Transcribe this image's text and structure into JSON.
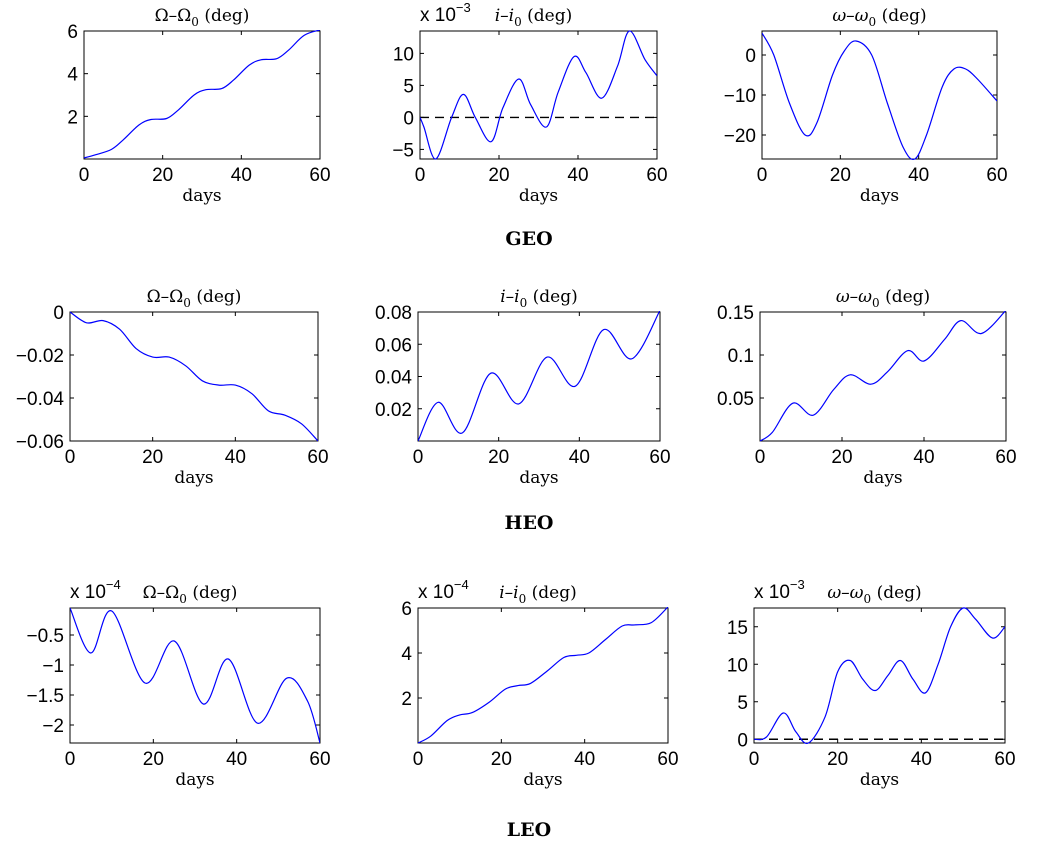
{
  "chart_data": [
    {
      "type": "line",
      "group": "GEO",
      "title": "Ω–Ω0 (deg)",
      "xlabel": "days",
      "ylabel": "",
      "exponent": "",
      "xlim": [
        0,
        60
      ],
      "ylim": [
        0,
        6
      ],
      "xticks": [
        "0",
        "20",
        "40",
        "60"
      ],
      "yticks": [
        2,
        4,
        6
      ],
      "ytick_labels": [
        "2",
        "4",
        "6"
      ],
      "zero_line": false,
      "grid": false,
      "series": [
        {
          "x": [
            0,
            3,
            7,
            10,
            14,
            17,
            21,
            24,
            28,
            31,
            35,
            38,
            42,
            45,
            49,
            52,
            56,
            60
          ],
          "y": [
            0.05,
            0.2,
            0.45,
            0.9,
            1.6,
            1.85,
            1.9,
            2.3,
            3.0,
            3.25,
            3.3,
            3.7,
            4.4,
            4.65,
            4.7,
            5.1,
            5.8,
            6.05
          ]
        }
      ]
    },
    {
      "type": "line",
      "group": "GEO",
      "title": "i–i0 (deg)",
      "xlabel": "days",
      "ylabel": "",
      "exponent": "x 10^-3",
      "xlim": [
        0,
        60
      ],
      "ylim": [
        -6.5,
        13.5
      ],
      "xticks": [
        "0",
        "20",
        "40",
        "60"
      ],
      "yticks": [
        -5,
        0,
        5,
        10
      ],
      "ytick_labels": [
        "-5",
        "0",
        "5",
        "10"
      ],
      "zero_line": true,
      "grid": false,
      "series": [
        {
          "x": [
            0,
            1,
            4,
            8,
            11,
            14,
            18,
            21,
            25,
            28,
            32,
            35,
            39,
            42,
            46,
            50,
            53,
            57,
            60
          ],
          "y": [
            0,
            -1.5,
            -6.5,
            0,
            3.6,
            0,
            -3.8,
            1.5,
            6.0,
            2.0,
            -1.5,
            4.0,
            9.5,
            7.0,
            3.0,
            8.0,
            13.5,
            9.0,
            6.5
          ]
        }
      ]
    },
    {
      "type": "line",
      "group": "GEO",
      "title": "ω–ω0 (deg)",
      "xlabel": "days",
      "ylabel": "",
      "exponent": "",
      "xlim": [
        0,
        60
      ],
      "ylim": [
        -26,
        6
      ],
      "xticks": [
        "0",
        "20",
        "40",
        "60"
      ],
      "yticks": [
        -20,
        -10,
        0
      ],
      "ytick_labels": [
        "-20",
        "-10",
        "0"
      ],
      "zero_line": false,
      "grid": false,
      "series": [
        {
          "x": [
            0,
            3,
            7,
            11,
            14,
            18,
            21,
            24,
            28,
            32,
            36,
            39,
            42,
            46,
            49,
            52,
            55,
            60
          ],
          "y": [
            5.5,
            0,
            -12,
            -20,
            -17,
            -5,
            1,
            3.5,
            0,
            -12,
            -23,
            -26,
            -20,
            -8,
            -3.5,
            -3.5,
            -6,
            -11.5
          ]
        }
      ]
    },
    {
      "type": "line",
      "group": "HEO",
      "title": "Ω–Ω0 (deg)",
      "xlabel": "days",
      "ylabel": "",
      "exponent": "",
      "xlim": [
        0,
        60
      ],
      "ylim": [
        -0.06,
        0
      ],
      "xticks": [
        "0",
        "20",
        "40",
        "60"
      ],
      "yticks": [
        -0.06,
        -0.04,
        -0.02,
        0
      ],
      "ytick_labels": [
        "-0.06",
        "-0.04",
        "-0.02",
        "0"
      ],
      "zero_line": false,
      "grid": false,
      "series": [
        {
          "x": [
            0,
            4,
            8,
            12,
            16,
            20,
            24,
            28,
            32,
            36,
            40,
            44,
            48,
            52,
            56,
            60
          ],
          "y": [
            0,
            -0.005,
            -0.004,
            -0.008,
            -0.017,
            -0.021,
            -0.021,
            -0.025,
            -0.032,
            -0.034,
            -0.034,
            -0.038,
            -0.046,
            -0.048,
            -0.052,
            -0.06
          ]
        }
      ]
    },
    {
      "type": "line",
      "group": "HEO",
      "title": "i–i0 (deg)",
      "xlabel": "days",
      "ylabel": "",
      "exponent": "",
      "xlim": [
        0,
        60
      ],
      "ylim": [
        0,
        0.08
      ],
      "xticks": [
        "0",
        "20",
        "40",
        "60"
      ],
      "yticks": [
        0.02,
        0.04,
        0.06,
        0.08
      ],
      "ytick_labels": [
        "0.02",
        "0.04",
        "0.06",
        "0.08"
      ],
      "zero_line": false,
      "grid": false,
      "series": [
        {
          "x": [
            0,
            5,
            11,
            18,
            25,
            32,
            39,
            46,
            53,
            60
          ],
          "y": [
            0,
            0.024,
            0.005,
            0.042,
            0.023,
            0.052,
            0.034,
            0.069,
            0.051,
            0.081
          ]
        }
      ]
    },
    {
      "type": "line",
      "group": "HEO",
      "title": "ω–ω0 (deg)",
      "xlabel": "days",
      "ylabel": "",
      "exponent": "",
      "xlim": [
        0,
        60
      ],
      "ylim": [
        0,
        0.15
      ],
      "xticks": [
        "0",
        "20",
        "40",
        "60"
      ],
      "yticks": [
        0.05,
        0.1,
        0.15
      ],
      "ytick_labels": [
        "0.05",
        "0.1",
        "0.15"
      ],
      "zero_line": false,
      "grid": false,
      "series": [
        {
          "x": [
            0,
            3,
            8,
            13,
            18,
            22,
            27,
            31,
            36,
            40,
            45,
            49,
            54,
            60
          ],
          "y": [
            0,
            0.01,
            0.044,
            0.03,
            0.06,
            0.077,
            0.066,
            0.08,
            0.105,
            0.093,
            0.118,
            0.14,
            0.125,
            0.152
          ]
        }
      ]
    },
    {
      "type": "line",
      "group": "LEO",
      "title": "Ω–Ω0 (deg)",
      "xlabel": "days",
      "ylabel": "",
      "exponent": "x 10^-4",
      "xlim": [
        0,
        60
      ],
      "ylim": [
        -2.3,
        -0.05
      ],
      "xticks": [
        "0",
        "20",
        "40",
        "60"
      ],
      "yticks": [
        -2,
        -1.5,
        -1,
        -0.5
      ],
      "ytick_labels": [
        "-2",
        "-1.5",
        "-1",
        "-0.5"
      ],
      "zero_line": false,
      "grid": false,
      "series": [
        {
          "x": [
            0,
            5,
            10,
            18,
            25,
            32,
            38,
            45,
            52,
            57,
            60
          ],
          "y": [
            -0.05,
            -0.8,
            -0.1,
            -1.3,
            -0.6,
            -1.65,
            -0.9,
            -1.97,
            -1.22,
            -1.6,
            -2.3
          ]
        }
      ]
    },
    {
      "type": "line",
      "group": "LEO",
      "title": "i–i0 (deg)",
      "xlabel": "days",
      "ylabel": "",
      "exponent": "x 10^-4",
      "xlim": [
        0,
        60
      ],
      "ylim": [
        0,
        6
      ],
      "xticks": [
        "0",
        "20",
        "40",
        "60"
      ],
      "yticks": [
        2,
        4,
        6
      ],
      "ytick_labels": [
        "2",
        "4",
        "6"
      ],
      "zero_line": false,
      "grid": false,
      "series": [
        {
          "x": [
            0,
            3,
            7,
            10,
            13,
            17,
            21,
            24,
            27,
            31,
            35,
            38,
            41,
            45,
            49,
            52,
            56,
            60
          ],
          "y": [
            0,
            0.3,
            1.0,
            1.25,
            1.35,
            1.8,
            2.4,
            2.55,
            2.65,
            3.2,
            3.8,
            3.9,
            4.0,
            4.6,
            5.2,
            5.25,
            5.35,
            6.05
          ]
        }
      ]
    },
    {
      "type": "line",
      "group": "LEO",
      "title": "ω–ω0 (deg)",
      "xlabel": "days",
      "ylabel": "",
      "exponent": "x 10^-3",
      "xlim": [
        0,
        60
      ],
      "ylim": [
        -0.5,
        17.5
      ],
      "xticks": [
        "0",
        "20",
        "40",
        "60"
      ],
      "yticks": [
        0,
        5,
        10,
        15
      ],
      "ytick_labels": [
        "0",
        "5",
        "10",
        "15"
      ],
      "zero_line": true,
      "grid": false,
      "series": [
        {
          "x": [
            0,
            3,
            7,
            10,
            13,
            17,
            20,
            23,
            26,
            29,
            32,
            35,
            38,
            41,
            44,
            47,
            50,
            53,
            57,
            60
          ],
          "y": [
            0,
            0.3,
            3.5,
            1,
            -0.5,
            3,
            9,
            10.5,
            8,
            6.5,
            8.5,
            10.5,
            8,
            6.2,
            10,
            15,
            17.5,
            16,
            13.5,
            15
          ]
        }
      ]
    }
  ],
  "group_labels": [
    "GEO",
    "HEO",
    "LEO"
  ]
}
